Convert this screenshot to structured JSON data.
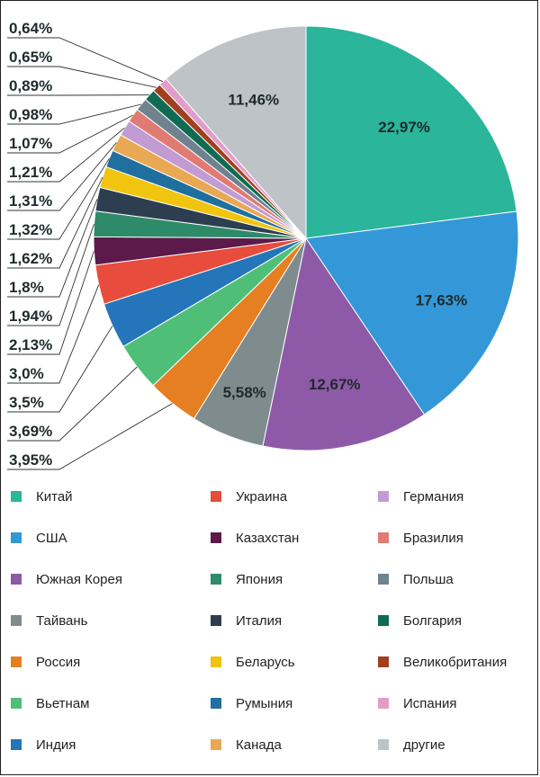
{
  "chart_data": {
    "type": "pie",
    "title": "",
    "slices": [
      {
        "name": "Китай",
        "value": 22.97,
        "label": "22,97%",
        "color": "#2bb59a"
      },
      {
        "name": "США",
        "value": 17.63,
        "label": "17,63%",
        "color": "#3498d8"
      },
      {
        "name": "Южная Корея",
        "value": 12.67,
        "label": "12,67%",
        "color": "#8e5aa8"
      },
      {
        "name": "Тайвань",
        "value": 5.58,
        "label": "5,58%",
        "color": "#7f8c8d"
      },
      {
        "name": "Россия",
        "value": 3.95,
        "label": "3,95%",
        "color": "#e67e22"
      },
      {
        "name": "Вьетнам",
        "value": 3.69,
        "label": "3,69%",
        "color": "#4fbf77"
      },
      {
        "name": "Индия",
        "value": 3.5,
        "label": "3,5%",
        "color": "#2475b9"
      },
      {
        "name": "Украина",
        "value": 3.0,
        "label": "3,0%",
        "color": "#e74c3c"
      },
      {
        "name": "Казахстан",
        "value": 2.13,
        "label": "2,13%",
        "color": "#5b1a4a"
      },
      {
        "name": "Япония",
        "value": 1.94,
        "label": "1,94%",
        "color": "#2e8b6a"
      },
      {
        "name": "Италия",
        "value": 1.8,
        "label": "1,8%",
        "color": "#2c3e50"
      },
      {
        "name": "Беларусь",
        "value": 1.62,
        "label": "1,62%",
        "color": "#f1c40f"
      },
      {
        "name": "Румыния",
        "value": 1.32,
        "label": "1,32%",
        "color": "#1f6f9f"
      },
      {
        "name": "Канада",
        "value": 1.31,
        "label": "1,31%",
        "color": "#e8a854"
      },
      {
        "name": "Германия",
        "value": 1.21,
        "label": "1,21%",
        "color": "#c39bd3"
      },
      {
        "name": "Бразилия",
        "value": 1.07,
        "label": "1,07%",
        "color": "#e07b73"
      },
      {
        "name": "Польша",
        "value": 0.98,
        "label": "0,98%",
        "color": "#6f8290"
      },
      {
        "name": "Болгария",
        "value": 0.89,
        "label": "0,89%",
        "color": "#0f6b52"
      },
      {
        "name": "Великобритания",
        "value": 0.65,
        "label": "0,65%",
        "color": "#a0401f"
      },
      {
        "name": "Испания",
        "value": 0.64,
        "label": "0,64%",
        "color": "#e39cc9"
      },
      {
        "name": "другие",
        "value": 11.46,
        "label": "11,46%",
        "color": "#bdc3c7"
      }
    ],
    "legend": {
      "columns": [
        [
          "Китай",
          "США",
          "Южная Корея",
          "Тайвань",
          "Россия",
          "Вьетнам",
          "Индия"
        ],
        [
          "Украина",
          "Казахстан",
          "Япония",
          "Италия",
          "Беларусь",
          "Румыния",
          "Канада"
        ],
        [
          "Германия",
          "Бразилия",
          "Польша",
          "Болгария",
          "Великобритания",
          "Испания",
          "другие"
        ]
      ]
    }
  }
}
